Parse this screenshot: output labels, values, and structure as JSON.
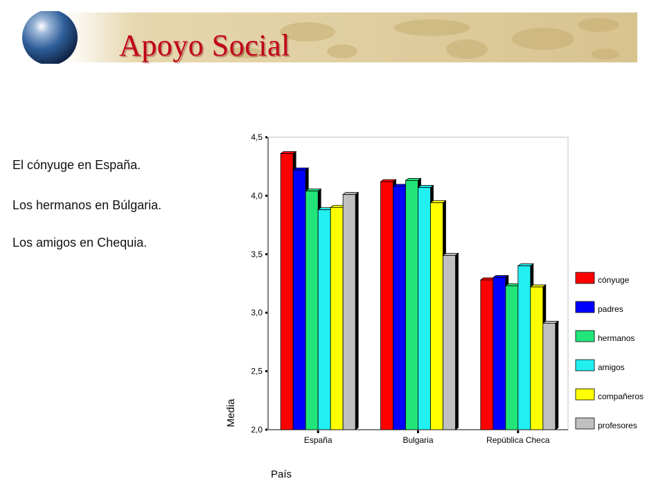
{
  "slide": {
    "title": "Apoyo Social",
    "bullets": [
      "El cónyuge en España.",
      "Los hermanos en Búlgaria.",
      "Los amigos en Chequia."
    ]
  },
  "colors": {
    "title": "#c0001a",
    "banner": "#d8c38f",
    "globe": "#2f5e9a"
  },
  "chart_data": {
    "type": "bar",
    "xlabel": "País",
    "ylabel": "Media",
    "ylim": [
      2.0,
      4.5
    ],
    "yticks": [
      "2,0",
      "2,5",
      "3,0",
      "3,5",
      "4,0",
      "4,5"
    ],
    "categories": [
      "España",
      "Bulgaria",
      "República Checa"
    ],
    "legend_position": "right",
    "grid": false,
    "series": [
      {
        "name": "cónyuge",
        "color": "#ff0000",
        "values": [
          4.36,
          4.12,
          3.28
        ]
      },
      {
        "name": "padres",
        "color": "#0000ff",
        "values": [
          4.22,
          4.08,
          3.3
        ]
      },
      {
        "name": "hermanos",
        "color": "#22e57a",
        "values": [
          4.04,
          4.13,
          3.23
        ]
      },
      {
        "name": "amigos",
        "color": "#22f0f0",
        "values": [
          3.88,
          4.07,
          3.4
        ]
      },
      {
        "name": "compañeros",
        "color": "#ffff00",
        "values": [
          3.9,
          3.94,
          3.22
        ]
      },
      {
        "name": "profesores",
        "color": "#c0c0c0",
        "values": [
          4.01,
          3.49,
          2.91
        ]
      }
    ]
  }
}
